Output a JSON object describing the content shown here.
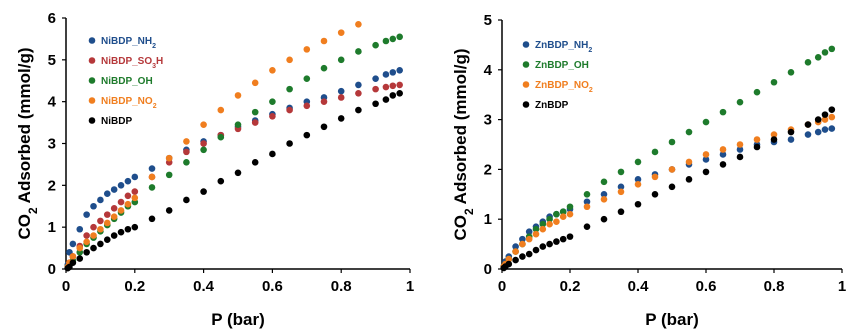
{
  "chart_data": [
    {
      "type": "scatter",
      "xlabel": "P (bar)",
      "ylabel": "CO2 Adsorbed (mmol/g)",
      "ylabel_prefix": "CO",
      "ylabel_sub": "2",
      "ylabel_suffix": " Adsorbed (mmol/g)",
      "xlim": [
        0,
        1
      ],
      "ylim": [
        0,
        6
      ],
      "xticks": [
        "0",
        "0.2",
        "0.4",
        "0.6",
        "0.8",
        "1"
      ],
      "xtick_values": [
        0,
        0.2,
        0.4,
        0.6,
        0.8,
        1
      ],
      "yticks": [
        "0",
        "1",
        "2",
        "3",
        "4",
        "5",
        "6"
      ],
      "ytick_values": [
        0,
        1,
        2,
        3,
        4,
        5,
        6
      ],
      "grid": false,
      "legend_position": "top-left",
      "series": [
        {
          "name": "NiBDP_NH2",
          "label_main": "NiBDP_NH",
          "label_sub": "2",
          "color": "#1f4e8c",
          "x": [
            0.005,
            0.01,
            0.02,
            0.04,
            0.06,
            0.08,
            0.1,
            0.12,
            0.14,
            0.16,
            0.18,
            0.2,
            0.25,
            0.3,
            0.35,
            0.4,
            0.45,
            0.5,
            0.55,
            0.6,
            0.65,
            0.7,
            0.75,
            0.8,
            0.85,
            0.9,
            0.93,
            0.95,
            0.97
          ],
          "y": [
            0.1,
            0.4,
            0.6,
            0.95,
            1.3,
            1.5,
            1.65,
            1.8,
            1.9,
            2.0,
            2.1,
            2.2,
            2.4,
            2.65,
            2.85,
            3.05,
            3.2,
            3.4,
            3.55,
            3.7,
            3.85,
            4.0,
            4.1,
            4.25,
            4.4,
            4.55,
            4.65,
            4.7,
            4.75
          ]
        },
        {
          "name": "NiBDP_SO3H",
          "label_main": "NiBDP_SO",
          "label_sub": "3",
          "label_suffix": "H",
          "color": "#b5383a",
          "x": [
            0.005,
            0.01,
            0.02,
            0.04,
            0.06,
            0.08,
            0.1,
            0.12,
            0.14,
            0.16,
            0.18,
            0.2,
            0.25,
            0.3,
            0.35,
            0.4,
            0.45,
            0.5,
            0.55,
            0.6,
            0.65,
            0.7,
            0.75,
            0.8,
            0.85,
            0.9,
            0.93,
            0.95,
            0.97
          ],
          "y": [
            0.05,
            0.15,
            0.3,
            0.55,
            0.8,
            1.0,
            1.15,
            1.3,
            1.45,
            1.6,
            1.75,
            1.85,
            2.2,
            2.55,
            2.8,
            3.0,
            3.2,
            3.35,
            3.5,
            3.65,
            3.8,
            3.9,
            4.0,
            4.1,
            4.2,
            4.3,
            4.35,
            4.38,
            4.4
          ]
        },
        {
          "name": "NiBDP_OH",
          "label_main": "NiBDP_OH",
          "label_sub": "",
          "color": "#1e7b2c",
          "x": [
            0.005,
            0.01,
            0.02,
            0.04,
            0.06,
            0.08,
            0.1,
            0.12,
            0.14,
            0.16,
            0.18,
            0.2,
            0.25,
            0.3,
            0.35,
            0.4,
            0.45,
            0.5,
            0.55,
            0.6,
            0.65,
            0.7,
            0.75,
            0.8,
            0.85,
            0.9,
            0.93,
            0.95,
            0.97
          ],
          "y": [
            0.05,
            0.1,
            0.2,
            0.4,
            0.6,
            0.75,
            0.9,
            1.05,
            1.2,
            1.35,
            1.5,
            1.6,
            1.95,
            2.25,
            2.55,
            2.85,
            3.15,
            3.45,
            3.75,
            4.0,
            4.3,
            4.55,
            4.8,
            5.0,
            5.2,
            5.35,
            5.45,
            5.5,
            5.55
          ]
        },
        {
          "name": "NiBDP_NO2",
          "label_main": "NiBDP_NO",
          "label_sub": "2",
          "color": "#f07e1f",
          "x": [
            0.005,
            0.01,
            0.02,
            0.04,
            0.06,
            0.08,
            0.1,
            0.12,
            0.14,
            0.16,
            0.18,
            0.2,
            0.25,
            0.3,
            0.35,
            0.4,
            0.45,
            0.5,
            0.55,
            0.6,
            0.65,
            0.7,
            0.75,
            0.8,
            0.85
          ],
          "y": [
            0.05,
            0.15,
            0.3,
            0.5,
            0.65,
            0.8,
            0.95,
            1.1,
            1.25,
            1.4,
            1.55,
            1.7,
            2.2,
            2.65,
            3.05,
            3.45,
            3.8,
            4.15,
            4.45,
            4.75,
            5.0,
            5.25,
            5.45,
            5.65,
            5.85
          ]
        },
        {
          "name": "NiBDP",
          "label_main": "NiBDP",
          "label_sub": "",
          "color": "#000000",
          "x": [
            0.005,
            0.01,
            0.02,
            0.04,
            0.06,
            0.08,
            0.1,
            0.12,
            0.14,
            0.16,
            0.18,
            0.2,
            0.25,
            0.3,
            0.35,
            0.4,
            0.45,
            0.5,
            0.55,
            0.6,
            0.65,
            0.7,
            0.75,
            0.8,
            0.85,
            0.9,
            0.93,
            0.95,
            0.97
          ],
          "y": [
            0.02,
            0.05,
            0.15,
            0.25,
            0.4,
            0.5,
            0.6,
            0.7,
            0.8,
            0.88,
            0.95,
            1.0,
            1.2,
            1.4,
            1.65,
            1.85,
            2.1,
            2.3,
            2.55,
            2.75,
            3.0,
            3.2,
            3.4,
            3.6,
            3.8,
            3.95,
            4.05,
            4.15,
            4.2
          ]
        }
      ]
    },
    {
      "type": "scatter",
      "xlabel": "P (bar)",
      "ylabel": "CO2 Adsorbed (mmol/g)",
      "ylabel_prefix": "CO",
      "ylabel_sub": "2",
      "ylabel_suffix": " Adsorbed (mmol/g)",
      "xlim": [
        0,
        1
      ],
      "ylim": [
        0,
        5
      ],
      "xticks": [
        "0",
        "0.2",
        "0.4",
        "0.6",
        "0.8",
        "1"
      ],
      "xtick_values": [
        0,
        0.2,
        0.4,
        0.6,
        0.8,
        1
      ],
      "yticks": [
        "0",
        "1",
        "2",
        "3",
        "4",
        "5"
      ],
      "ytick_values": [
        0,
        1,
        2,
        3,
        4,
        5
      ],
      "grid": false,
      "legend_position": "top-left",
      "series": [
        {
          "name": "ZnBDP_NH2",
          "label_main": "ZnBDP_NH",
          "label_sub": "2",
          "color": "#1f4e8c",
          "x": [
            0.005,
            0.01,
            0.02,
            0.04,
            0.06,
            0.08,
            0.1,
            0.12,
            0.14,
            0.16,
            0.18,
            0.2,
            0.25,
            0.3,
            0.35,
            0.4,
            0.45,
            0.5,
            0.55,
            0.6,
            0.65,
            0.7,
            0.75,
            0.8,
            0.85,
            0.9,
            0.93,
            0.95,
            0.97
          ],
          "y": [
            0.05,
            0.15,
            0.25,
            0.45,
            0.6,
            0.75,
            0.85,
            0.95,
            1.05,
            1.1,
            1.15,
            1.2,
            1.35,
            1.5,
            1.65,
            1.8,
            1.9,
            2.0,
            2.1,
            2.2,
            2.3,
            2.4,
            2.5,
            2.55,
            2.6,
            2.7,
            2.75,
            2.8,
            2.82
          ]
        },
        {
          "name": "ZnBDP_OH",
          "label_main": "ZnBDP_OH",
          "label_sub": "",
          "color": "#1e7b2c",
          "x": [
            0.005,
            0.01,
            0.02,
            0.04,
            0.06,
            0.08,
            0.1,
            0.12,
            0.14,
            0.16,
            0.18,
            0.2,
            0.25,
            0.3,
            0.35,
            0.4,
            0.45,
            0.5,
            0.55,
            0.6,
            0.65,
            0.7,
            0.75,
            0.8,
            0.85,
            0.9,
            0.93,
            0.95,
            0.97
          ],
          "y": [
            0.05,
            0.1,
            0.2,
            0.35,
            0.5,
            0.65,
            0.8,
            0.9,
            1.0,
            1.1,
            1.15,
            1.25,
            1.5,
            1.75,
            1.95,
            2.15,
            2.35,
            2.55,
            2.75,
            2.95,
            3.15,
            3.35,
            3.55,
            3.75,
            3.95,
            4.15,
            4.25,
            4.35,
            4.42
          ]
        },
        {
          "name": "ZnBDP_NO2",
          "label_main": "ZnBDP_NO",
          "label_sub": "2",
          "color": "#f07e1f",
          "x": [
            0.005,
            0.01,
            0.02,
            0.04,
            0.06,
            0.08,
            0.1,
            0.12,
            0.14,
            0.16,
            0.18,
            0.2,
            0.25,
            0.3,
            0.35,
            0.4,
            0.45,
            0.5,
            0.55,
            0.6,
            0.65,
            0.7,
            0.75,
            0.8,
            0.85,
            0.9,
            0.93,
            0.95,
            0.97
          ],
          "y": [
            0.05,
            0.1,
            0.2,
            0.35,
            0.5,
            0.6,
            0.7,
            0.8,
            0.9,
            0.95,
            1.05,
            1.1,
            1.25,
            1.4,
            1.55,
            1.7,
            1.85,
            2.0,
            2.15,
            2.3,
            2.4,
            2.5,
            2.6,
            2.7,
            2.8,
            2.9,
            2.95,
            3.0,
            3.05
          ]
        },
        {
          "name": "ZnBDP",
          "label_main": "ZnBDP",
          "label_sub": "",
          "color": "#000000",
          "x": [
            0.005,
            0.01,
            0.02,
            0.04,
            0.06,
            0.08,
            0.1,
            0.12,
            0.14,
            0.16,
            0.18,
            0.2,
            0.25,
            0.3,
            0.35,
            0.4,
            0.45,
            0.5,
            0.55,
            0.6,
            0.65,
            0.7,
            0.75,
            0.8,
            0.85,
            0.9,
            0.93,
            0.95,
            0.97
          ],
          "y": [
            0.02,
            0.05,
            0.1,
            0.18,
            0.25,
            0.3,
            0.38,
            0.45,
            0.5,
            0.55,
            0.6,
            0.65,
            0.85,
            1.0,
            1.15,
            1.3,
            1.5,
            1.65,
            1.8,
            1.95,
            2.1,
            2.25,
            2.45,
            2.6,
            2.75,
            2.9,
            3.0,
            3.1,
            3.2
          ]
        }
      ]
    }
  ]
}
